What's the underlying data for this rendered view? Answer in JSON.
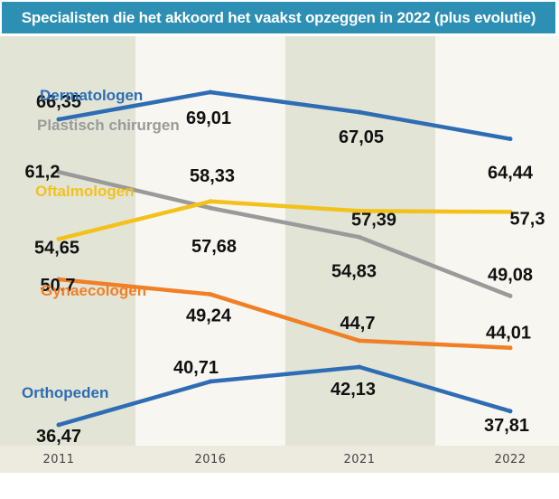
{
  "chart_data": {
    "type": "line",
    "title": "Specialisten die het akkoord het vaakst opzeggen in 2022  (plus evolutie)",
    "xlabel": "",
    "ylabel": "",
    "categories": [
      "2011",
      "2016",
      "2021",
      "2022"
    ],
    "grid": false,
    "legend": "inline series labels",
    "colors": {
      "title_bg": "#2c8fb3",
      "band_dark": "#e2e5d6",
      "band_light": "#f8f6f0",
      "axis_strip": "#edeae0"
    },
    "series": [
      {
        "name": "Dermatologen",
        "color": "#2e6db4",
        "values": [
          66.35,
          69.01,
          67.05,
          64.44
        ],
        "labels": [
          "66,35",
          "69,01",
          "67,05",
          "64,44"
        ]
      },
      {
        "name": "Plastisch chirurgen",
        "color": "#9a9a9a",
        "values": [
          61.2,
          57.68,
          54.83,
          49.08
        ],
        "labels": [
          "61,2",
          "57,68",
          "54,83",
          "49,08"
        ]
      },
      {
        "name": "Oftalmologen",
        "color": "#f2c21b",
        "values": [
          54.65,
          58.33,
          57.39,
          57.3
        ],
        "labels": [
          "54,65",
          "58,33",
          "57,39",
          "57,3"
        ]
      },
      {
        "name": "Gynaecologen",
        "color": "#f07f26",
        "values": [
          50.7,
          49.24,
          44.7,
          44.01
        ],
        "labels": [
          "50,7",
          "49,24",
          "44,7",
          "44,01"
        ]
      },
      {
        "name": "Orthopeden",
        "color": "#2e6db4",
        "values": [
          36.47,
          40.71,
          42.13,
          37.81
        ],
        "labels": [
          "36,47",
          "40,71",
          "42,13",
          "37,81"
        ]
      }
    ]
  }
}
